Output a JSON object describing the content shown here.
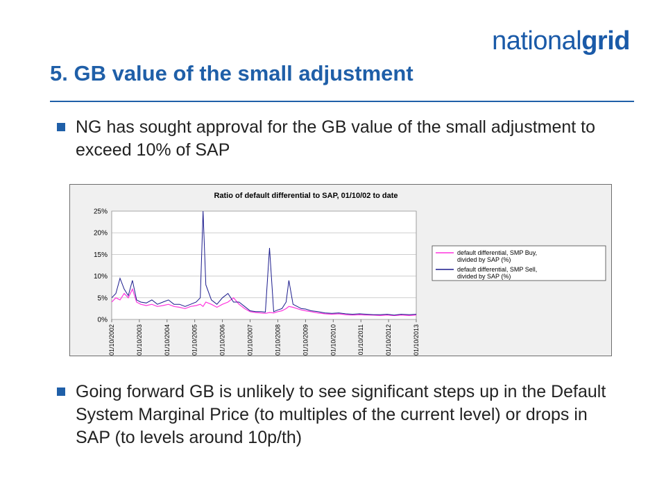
{
  "logo": {
    "light": "national",
    "bold": "grid"
  },
  "title": "5. GB value of the small adjustment",
  "bullets": [
    "NG has sought approval for the GB value of the small adjustment to exceed 10% of SAP",
    "Going forward GB is unlikely to see significant steps up in the Default System Marginal Price (to multiples of the current level) or drops in SAP (to levels around 10p/th)"
  ],
  "colors": {
    "accent": "#1f5fa8",
    "series_buy": "#ff33dd",
    "series_sell": "#1a1a8c"
  },
  "chart_data": {
    "type": "line",
    "title": "Ratio of default differential to SAP, 01/10/02 to date",
    "xlabel": "",
    "ylabel": "",
    "ylim": [
      0,
      25
    ],
    "yticks": [
      "0%",
      "5%",
      "10%",
      "15%",
      "20%",
      "25%"
    ],
    "xticks": [
      "01/10/2002",
      "01/10/2003",
      "01/10/2004",
      "01/10/2005",
      "01/10/2006",
      "01/10/2007",
      "01/10/2008",
      "01/10/2009",
      "01/10/2010",
      "01/10/2011",
      "01/10/2012",
      "01/10/2013"
    ],
    "grid": true,
    "legend_position": "right",
    "x": [
      2002.75,
      2002.9,
      2003.05,
      2003.2,
      2003.35,
      2003.5,
      2003.65,
      2003.8,
      2004.0,
      2004.2,
      2004.4,
      2004.6,
      2004.8,
      2005.0,
      2005.2,
      2005.4,
      2005.6,
      2005.8,
      2005.95,
      2006.05,
      2006.15,
      2006.35,
      2006.55,
      2006.75,
      2006.95,
      2007.15,
      2007.35,
      2007.55,
      2007.75,
      2007.95,
      2008.15,
      2008.3,
      2008.45,
      2008.6,
      2008.75,
      2008.9,
      2009.05,
      2009.15,
      2009.3,
      2009.45,
      2009.6,
      2009.75,
      2009.95,
      2010.2,
      2010.45,
      2010.7,
      2010.95,
      2011.2,
      2011.45,
      2011.7,
      2011.95,
      2012.2,
      2012.45,
      2012.7,
      2012.95,
      2013.2,
      2013.5,
      2013.75
    ],
    "series": [
      {
        "name": "default differential, SMP Buy, divided by SAP (%)",
        "values": [
          4,
          5,
          4.5,
          6,
          5,
          7,
          4,
          3.5,
          3.2,
          3.5,
          3,
          3.2,
          3.5,
          3,
          2.8,
          2.5,
          3,
          3.2,
          3.5,
          3,
          4,
          3.5,
          2.8,
          3.5,
          4,
          5,
          3.5,
          2.5,
          1.8,
          1.6,
          1.5,
          1.4,
          1.6,
          1.5,
          1.8,
          2,
          2.5,
          3,
          2.8,
          2.5,
          2.2,
          2,
          1.8,
          1.5,
          1.3,
          1.2,
          1.3,
          1.1,
          1,
          1.1,
          1,
          1,
          0.9,
          1,
          0.9,
          1,
          0.9,
          1
        ]
      },
      {
        "name": "default differential, SMP Sell, divided by SAP (%)",
        "values": [
          5,
          6,
          9.5,
          7,
          5.5,
          9,
          4.5,
          4,
          3.8,
          4.5,
          3.5,
          4,
          4.5,
          3.5,
          3.5,
          3,
          3.5,
          4,
          5,
          25,
          8,
          4.5,
          3.5,
          5,
          6,
          4,
          4,
          3,
          2,
          1.8,
          1.8,
          1.7,
          16.5,
          1.8,
          2.2,
          2.5,
          4,
          9,
          3.5,
          3,
          2.5,
          2.4,
          2,
          1.8,
          1.5,
          1.4,
          1.5,
          1.3,
          1.2,
          1.3,
          1.2,
          1.1,
          1.1,
          1.2,
          1,
          1.2,
          1.1,
          1.2
        ]
      }
    ]
  }
}
